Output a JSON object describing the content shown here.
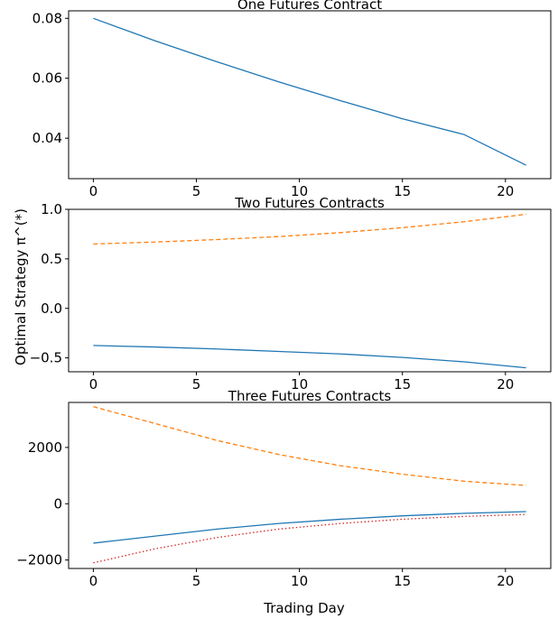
{
  "figure": {
    "xlabel": "Trading Day",
    "ylabel": "Optimal Strategy π^(*)"
  },
  "chart_data": [
    {
      "type": "line",
      "title": "One Futures Contract",
      "xlim": [
        -1.2,
        22.2
      ],
      "ylim": [
        0.0265,
        0.0825
      ],
      "xticks": [
        0,
        5,
        10,
        15,
        20
      ],
      "yticks": [
        0.04,
        0.06,
        0.08
      ],
      "ytick_labels": [
        "0.04",
        "0.06",
        "0.08"
      ],
      "series": [
        {
          "color": "#1f77b4",
          "dash": "solid",
          "x": [
            0,
            3,
            6,
            9,
            12,
            15,
            18,
            21
          ],
          "y": [
            0.08,
            0.0725,
            0.0655,
            0.0588,
            0.0525,
            0.0465,
            0.0412,
            0.031
          ]
        }
      ]
    },
    {
      "type": "line",
      "title": "Two Futures Contracts",
      "xlim": [
        -1.2,
        22.2
      ],
      "ylim": [
        -0.64,
        1.0
      ],
      "xticks": [
        0,
        5,
        10,
        15,
        20
      ],
      "yticks": [
        -0.5,
        0.0,
        0.5,
        1.0
      ],
      "ytick_labels": [
        "−0.5",
        "0.0",
        "0.5",
        "1.0"
      ],
      "series": [
        {
          "color": "#1f77b4",
          "dash": "solid",
          "x": [
            0,
            3,
            6,
            9,
            12,
            15,
            18,
            21
          ],
          "y": [
            -0.375,
            -0.39,
            -0.41,
            -0.435,
            -0.46,
            -0.495,
            -0.54,
            -0.6
          ]
        },
        {
          "color": "#ff7f0e",
          "dash": "dashed",
          "x": [
            0,
            3,
            6,
            9,
            12,
            15,
            18,
            21
          ],
          "y": [
            0.65,
            0.67,
            0.695,
            0.725,
            0.765,
            0.815,
            0.875,
            0.95
          ]
        }
      ]
    },
    {
      "type": "line",
      "title": "Three Futures Contracts",
      "xlim": [
        -1.2,
        22.2
      ],
      "ylim": [
        -2300,
        3600
      ],
      "xticks": [
        0,
        5,
        10,
        15,
        20
      ],
      "yticks": [
        -2000,
        0,
        2000
      ],
      "ytick_labels": [
        "−2000",
        "0",
        "2000"
      ],
      "series": [
        {
          "color": "#1f77b4",
          "dash": "solid",
          "x": [
            0,
            3,
            6,
            9,
            12,
            15,
            18,
            21
          ],
          "y": [
            -1400,
            -1150,
            -900,
            -700,
            -550,
            -430,
            -340,
            -280
          ]
        },
        {
          "color": "#ff7f0e",
          "dash": "dashed",
          "x": [
            0,
            3,
            6,
            9,
            12,
            15,
            18,
            21
          ],
          "y": [
            3450,
            2850,
            2250,
            1750,
            1350,
            1050,
            800,
            650
          ]
        },
        {
          "color": "#d62728",
          "dash": "dotted",
          "x": [
            0,
            3,
            6,
            9,
            12,
            15,
            18,
            21
          ],
          "y": [
            -2100,
            -1600,
            -1200,
            -900,
            -700,
            -550,
            -450,
            -380
          ]
        }
      ]
    }
  ]
}
